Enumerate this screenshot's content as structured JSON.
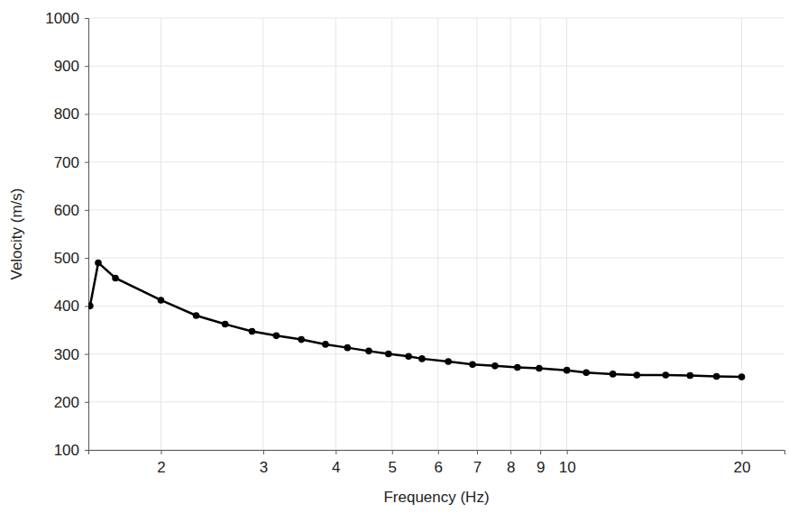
{
  "chart_data": {
    "type": "line",
    "x_label": "Frequency (Hz)",
    "y_label": "Velocity (m/s)",
    "log": "x",
    "grid": true,
    "color": "#000000",
    "marker": "circle",
    "line_style": "solid",
    "x": [
      1.51,
      1.56,
      1.67,
      2.0,
      2.3,
      2.58,
      2.87,
      3.16,
      3.49,
      3.84,
      4.19,
      4.56,
      4.93,
      5.34,
      5.63,
      6.25,
      6.88,
      7.52,
      8.22,
      8.96,
      10.0,
      10.8,
      12.0,
      13.2,
      14.8,
      16.3,
      18.1,
      20.0
    ],
    "values": [
      400,
      490,
      458,
      412,
      380,
      362,
      347,
      338,
      330,
      320,
      313,
      306,
      300,
      295,
      290,
      284,
      278,
      275,
      272,
      270,
      266,
      261,
      258,
      256,
      256,
      255,
      253,
      252
    ],
    "xlim": [
      1.5,
      23.7
    ],
    "xticks": [
      2,
      3,
      4,
      5,
      6,
      7,
      8,
      9,
      10,
      20
    ],
    "ylim": [
      100,
      1000
    ],
    "yticks": [
      100,
      200,
      300,
      400,
      500,
      600,
      700,
      800,
      900,
      1000
    ]
  }
}
